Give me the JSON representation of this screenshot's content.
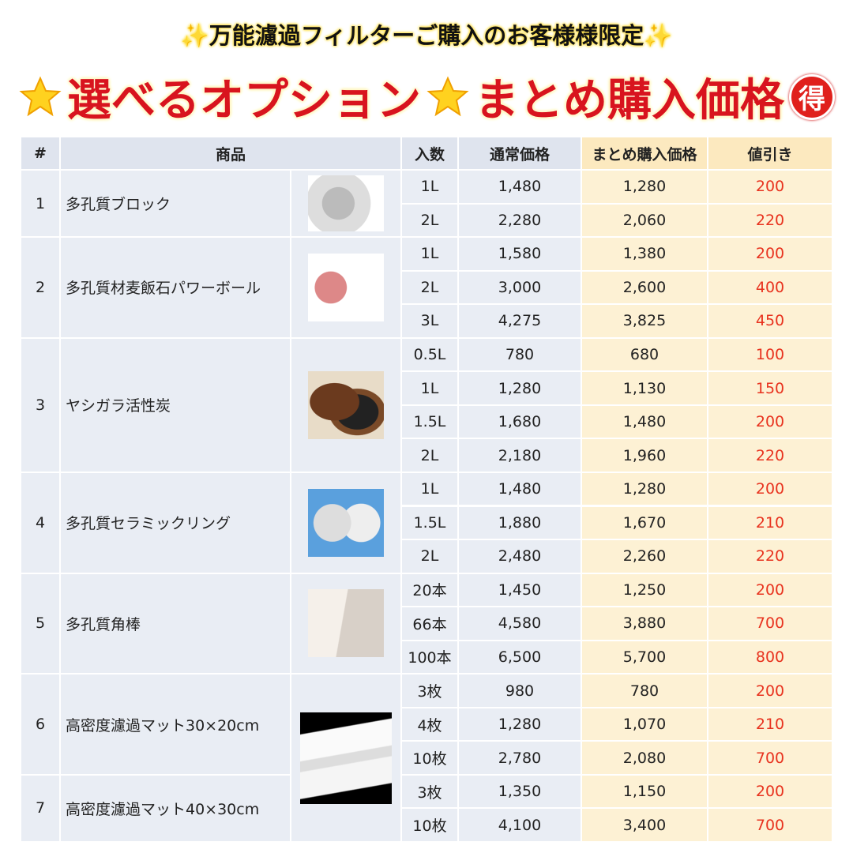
{
  "header": {
    "subtitle": "万能濾過フィルターご購入のお客様様限定",
    "title_left": "選べるオプション",
    "title_right": "まとめ購入価格",
    "badge": "得"
  },
  "table": {
    "headers": [
      "#",
      "商品",
      "入数",
      "通常価格",
      "まとめ購入価格",
      "値引き"
    ],
    "products": [
      {
        "no": "1",
        "name": "多孔質ブロック",
        "options": [
          [
            "1L",
            "1,480",
            "1,280",
            "200"
          ],
          [
            "2L",
            "2,280",
            "2,060",
            "220"
          ]
        ]
      },
      {
        "no": "2",
        "name": "多孔質材麦飯石パワーボール",
        "options": [
          [
            "1L",
            "1,580",
            "1,380",
            "200"
          ],
          [
            "2L",
            "3,000",
            "2,600",
            "400"
          ],
          [
            "3L",
            "4,275",
            "3,825",
            "450"
          ]
        ]
      },
      {
        "no": "3",
        "name": "ヤシガラ活性炭",
        "options": [
          [
            "0.5L",
            "780",
            "680",
            "100"
          ],
          [
            "1L",
            "1,280",
            "1,130",
            "150"
          ],
          [
            "1.5L",
            "1,680",
            "1,480",
            "200"
          ],
          [
            "2L",
            "2,180",
            "1,960",
            "220"
          ]
        ]
      },
      {
        "no": "4",
        "name": "多孔質セラミックリング",
        "options": [
          [
            "1L",
            "1,480",
            "1,280",
            "200"
          ],
          [
            "1.5L",
            "1,880",
            "1,670",
            "210"
          ],
          [
            "2L",
            "2,480",
            "2,260",
            "220"
          ]
        ]
      },
      {
        "no": "5",
        "name": "多孔質角棒",
        "options": [
          [
            "20本",
            "1,450",
            "1,250",
            "200"
          ],
          [
            "66本",
            "4,580",
            "3,880",
            "700"
          ],
          [
            "100本",
            "6,500",
            "5,700",
            "800"
          ]
        ]
      },
      {
        "no": "6",
        "name": "高密度濾過マット30×20cm",
        "options": [
          [
            "3枚",
            "980",
            "780",
            "200"
          ],
          [
            "4枚",
            "1,280",
            "1,070",
            "210"
          ],
          [
            "10枚",
            "2,780",
            "2,080",
            "700"
          ]
        ]
      },
      {
        "no": "7",
        "name": "高密度濾過マット40×30cm",
        "options": [
          [
            "3枚",
            "1,350",
            "1,150",
            "200"
          ],
          [
            "10枚",
            "4,100",
            "3,400",
            "700"
          ]
        ]
      }
    ]
  }
}
